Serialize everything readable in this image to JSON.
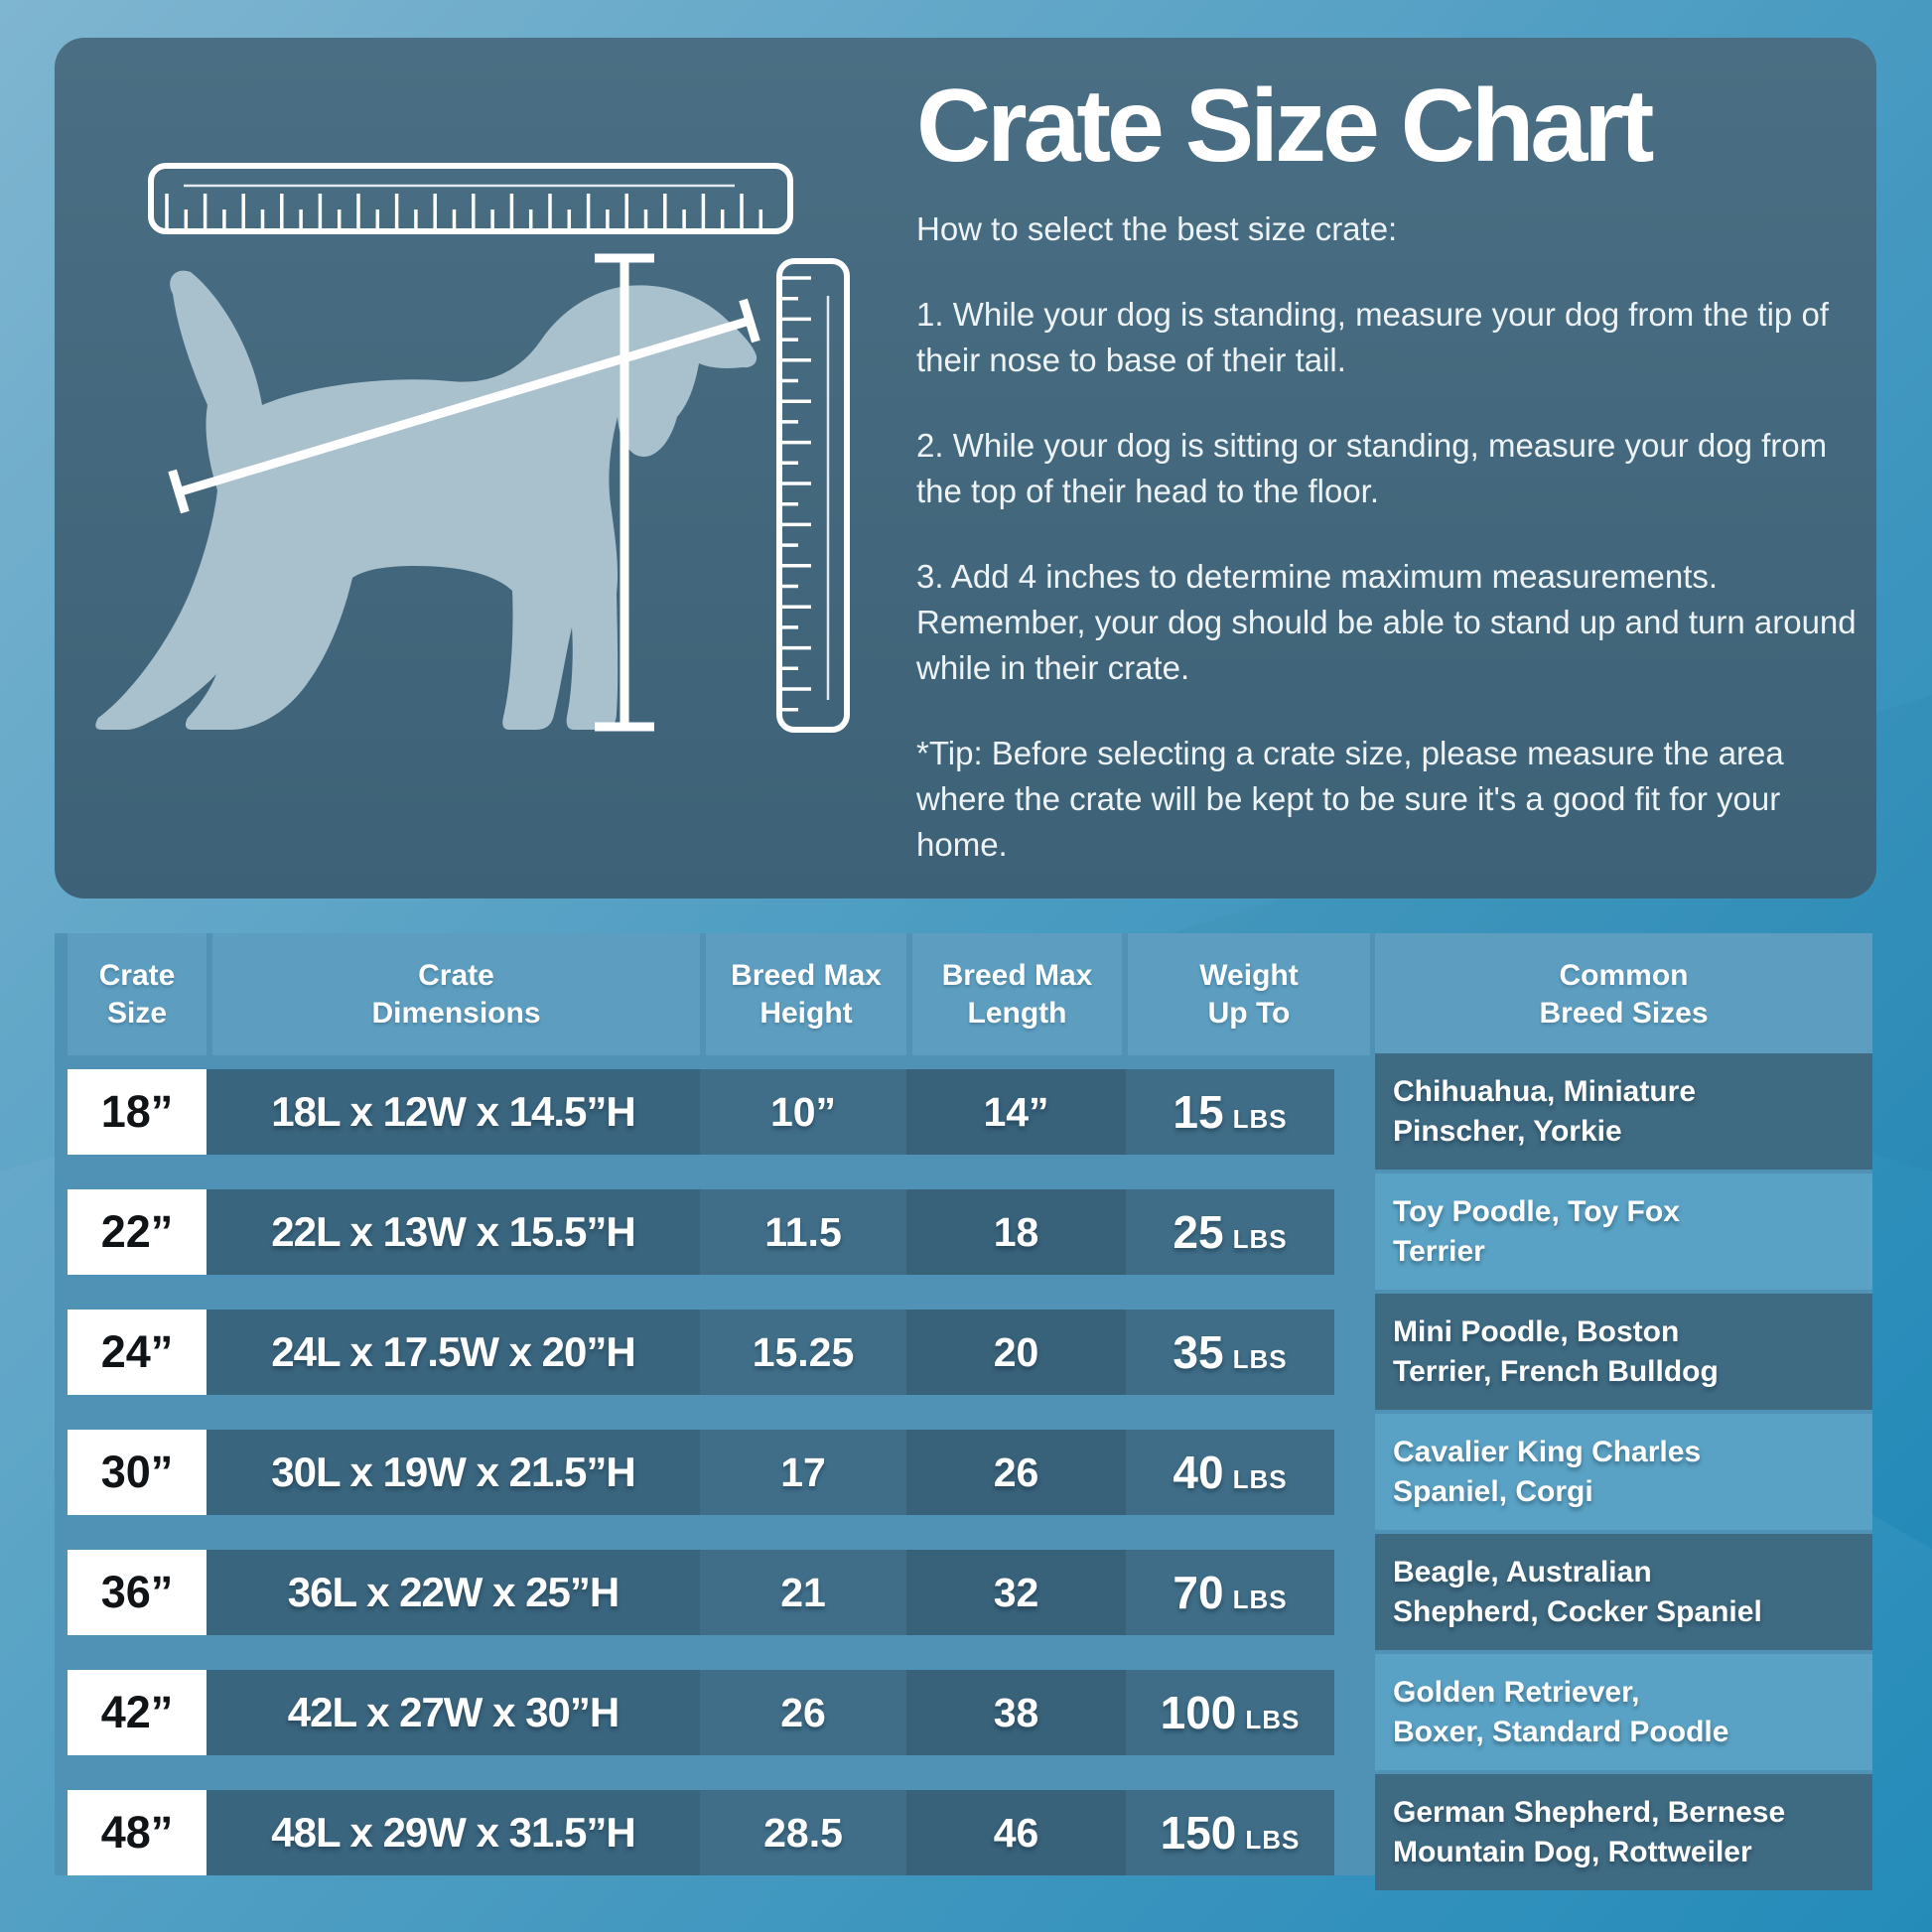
{
  "theme": {
    "bg_top_left": "#7fb5d0",
    "bg_mid": "#4c9cc2",
    "bg_bottom_right": "#1b86b6",
    "panel_top": "#4a6e83",
    "panel_bottom": "#3d6277",
    "band": "#4f92b5",
    "header_cell": "#5d9ec0",
    "cell_dims": "#3a657e",
    "cell_height": "#406e89",
    "cell_length": "#38617a",
    "cell_weight": "#3f6d87",
    "cell_size_bg": "#ffffff",
    "cell_size_text": "#111417",
    "breed_dark": "#3e6a82",
    "breed_light": "#5aa2c5",
    "text": "#eef3f6",
    "dog": "#a9c0cd",
    "line": "#ffffff"
  },
  "panel": {
    "title": "Crate Size Chart",
    "subtitle": "How to select the best size crate:",
    "steps": [
      "1. While your dog is standing, measure your dog from the tip of their nose to base of their tail.",
      "2. While your dog is sitting or standing, measure your dog from the top of their head to the floor.",
      "3. Add 4 inches to determine maximum measurements. Remember, your dog should be able to stand up and turn around while in their crate."
    ],
    "tip": "*Tip: Before selecting a crate size, please measure the area where the crate will be kept to be sure it's a good fit for your home.",
    "illustration_icons": [
      "horizontal-ruler",
      "vertical-ruler",
      "dog-silhouette",
      "height-measure-line",
      "length-measure-line"
    ]
  },
  "chart_data": {
    "type": "table",
    "title": "Crate Size Chart",
    "columns": [
      "Crate\nSize",
      "Crate\nDimensions",
      "Breed Max\nHeight",
      "Breed Max\nLength",
      "Weight\nUp To",
      "Common\nBreed Sizes"
    ],
    "rows": [
      {
        "size": "18”",
        "dimensions": "18L x 12W x 14.5”H",
        "breed_max_height": "10”",
        "breed_max_length": "14”",
        "weight": "15",
        "weight_unit": "LBS",
        "breeds": "Chihuahua, Miniature\nPinscher, Yorkie"
      },
      {
        "size": "22”",
        "dimensions": "22L x 13W x 15.5”H",
        "breed_max_height": "11.5",
        "breed_max_length": "18",
        "weight": "25",
        "weight_unit": "LBS",
        "breeds": "Toy Poodle, Toy Fox\nTerrier"
      },
      {
        "size": "24”",
        "dimensions": "24L x 17.5W x 20”H",
        "breed_max_height": "15.25",
        "breed_max_length": "20",
        "weight": "35",
        "weight_unit": "LBS",
        "breeds": "Mini Poodle, Boston\nTerrier, French Bulldog"
      },
      {
        "size": "30”",
        "dimensions": "30L x 19W x 21.5”H",
        "breed_max_height": "17",
        "breed_max_length": "26",
        "weight": "40",
        "weight_unit": "LBS",
        "breeds": "Cavalier King Charles\nSpaniel, Corgi"
      },
      {
        "size": "36”",
        "dimensions": "36L x 22W x 25”H",
        "breed_max_height": "21",
        "breed_max_length": "32",
        "weight": "70",
        "weight_unit": "LBS",
        "breeds": "Beagle, Australian\nShepherd, Cocker Spaniel"
      },
      {
        "size": "42”",
        "dimensions": "42L x 27W x 30”H",
        "breed_max_height": "26",
        "breed_max_length": "38",
        "weight": "100",
        "weight_unit": "LBS",
        "breeds": "Golden Retriever,\nBoxer, Standard Poodle"
      },
      {
        "size": "48”",
        "dimensions": "48L x 29W x 31.5”H",
        "breed_max_height": "28.5",
        "breed_max_length": "46",
        "weight": "150",
        "weight_unit": "LBS",
        "breeds": "German Shepherd, Bernese\nMountain Dog, Rottweiler"
      }
    ]
  }
}
